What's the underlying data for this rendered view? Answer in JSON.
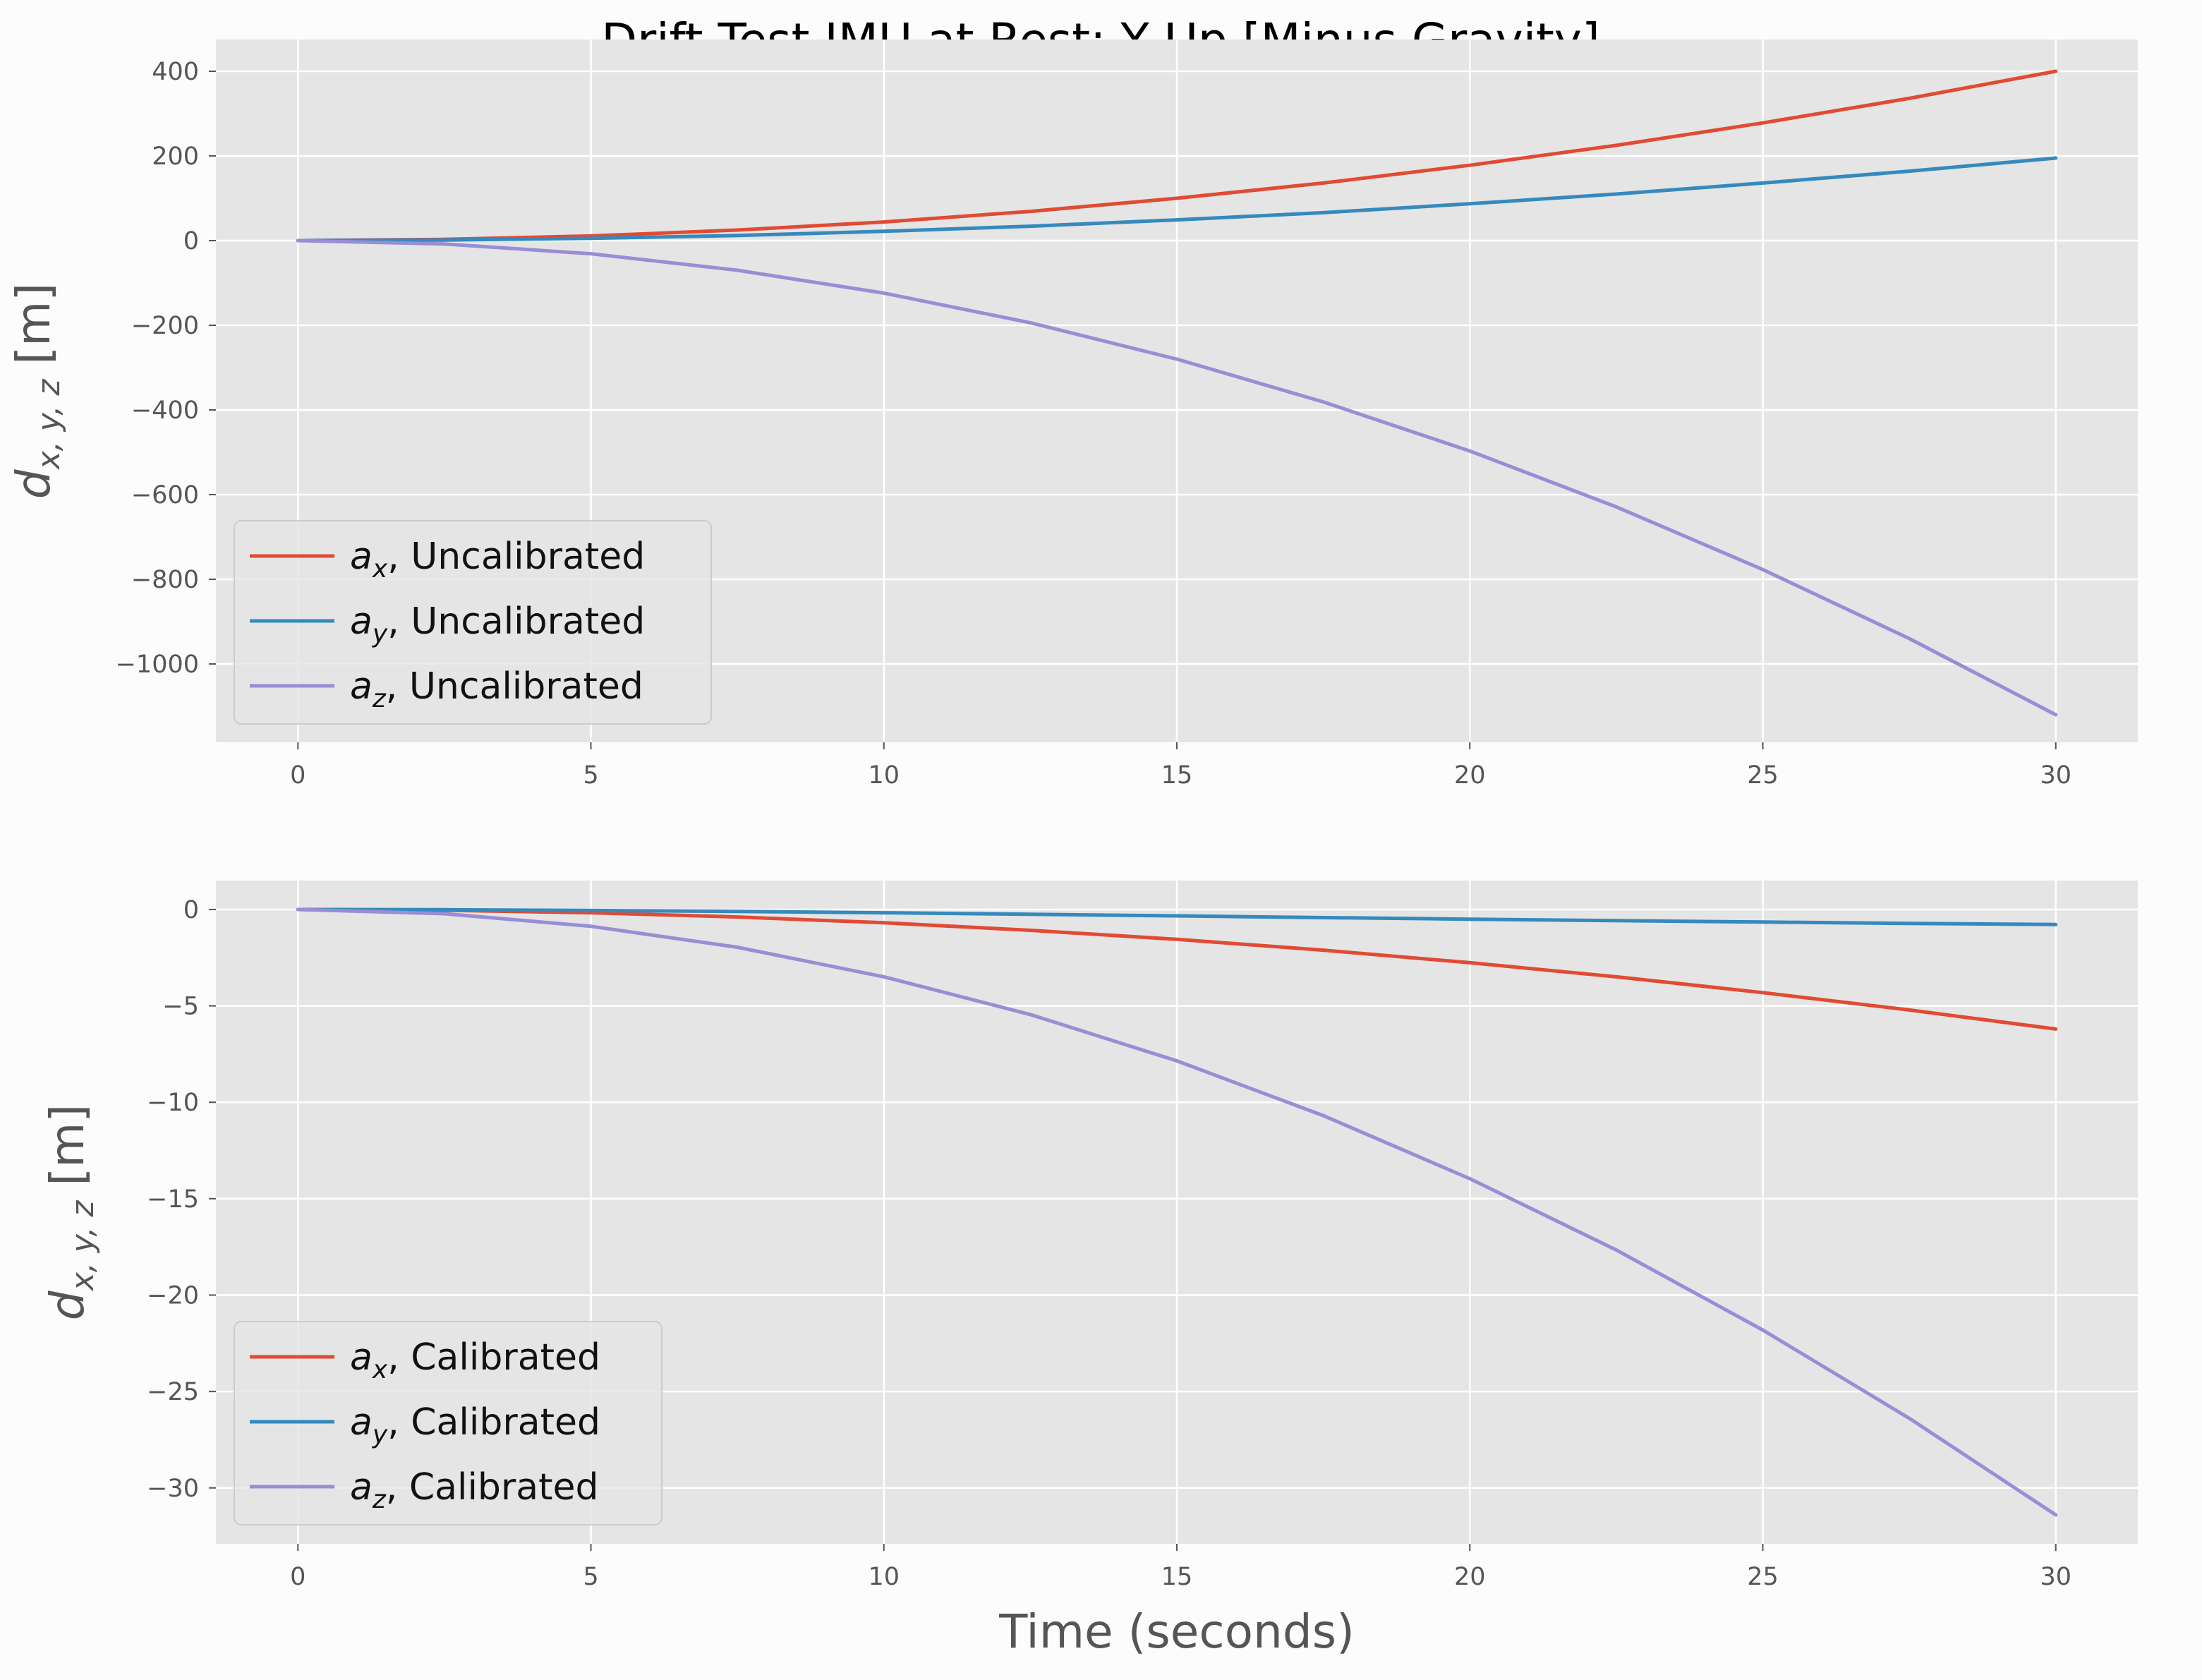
{
  "figure": {
    "title": "Drift Test IMU at Rest: Y Up [Minus Gravity]"
  },
  "colors": {
    "background": "#fcfcfc",
    "axes_face": "#e5e5e5",
    "grid": "#ffffff",
    "ax": "#e24a33",
    "ay": "#348abd",
    "az": "#988ed5"
  },
  "chart_data": [
    {
      "type": "line",
      "title": "Drift Test IMU at Rest: Y Up [Minus Gravity]",
      "xlabel": "",
      "ylabel": {
        "base": "d",
        "sub": "x, y, z",
        "unit": " [m]"
      },
      "xlim": [
        -1.4,
        31.4
      ],
      "ylim": [
        -1185,
        475
      ],
      "xticks": [
        0,
        5,
        10,
        15,
        20,
        25,
        30
      ],
      "yticks": [
        400,
        200,
        0,
        -200,
        -400,
        -600,
        -800,
        -1000
      ],
      "ytick_labels": [
        "400",
        "200",
        "0",
        "−200",
        "−400",
        "−600",
        "−800",
        "−1000"
      ],
      "grid": true,
      "legend_position": "lower-left",
      "series": [
        {
          "name": "a_x, Uncalibrated",
          "symbol": "a",
          "sub": "x",
          "suffix": ", Uncalibrated",
          "color": "#e24a33",
          "x": [
            0,
            2.5,
            5,
            7.5,
            10,
            12.5,
            15,
            17.5,
            20,
            22.5,
            25,
            27.5,
            30
          ],
          "y": [
            0,
            3,
            11,
            25,
            44,
            69,
            100,
            136,
            178,
            225,
            278,
            336,
            400
          ]
        },
        {
          "name": "a_y, Uncalibrated",
          "symbol": "a",
          "sub": "y",
          "suffix": ", Uncalibrated",
          "color": "#348abd",
          "x": [
            0,
            2.5,
            5,
            7.5,
            10,
            12.5,
            15,
            17.5,
            20,
            22.5,
            25,
            27.5,
            30
          ],
          "y": [
            0,
            1.4,
            5.4,
            12,
            22,
            34,
            49,
            66,
            87,
            110,
            136,
            164,
            195
          ]
        },
        {
          "name": "a_z, Uncalibrated",
          "symbol": "a",
          "sub": "z",
          "suffix": ", Uncalibrated",
          "color": "#988ed5",
          "x": [
            0,
            2.5,
            5,
            7.5,
            10,
            12.5,
            15,
            17.5,
            20,
            22.5,
            25,
            27.5,
            30
          ],
          "y": [
            0,
            -8,
            -31,
            -70,
            -124,
            -194,
            -280,
            -381,
            -497,
            -629,
            -777,
            -940,
            -1120
          ]
        }
      ]
    },
    {
      "type": "line",
      "title": "",
      "xlabel": "Time (seconds)",
      "ylabel": {
        "base": "d",
        "sub": "x, y, z",
        "unit": " [m]"
      },
      "xlim": [
        -1.4,
        31.4
      ],
      "ylim": [
        -32.9,
        1.5
      ],
      "xticks": [
        0,
        5,
        10,
        15,
        20,
        25,
        30
      ],
      "yticks": [
        0,
        -5,
        -10,
        -15,
        -20,
        -25,
        -30
      ],
      "ytick_labels": [
        "0",
        "−5",
        "−10",
        "−15",
        "−20",
        "−25",
        "−30"
      ],
      "grid": true,
      "legend_position": "lower-left",
      "series": [
        {
          "name": "a_x, Calibrated",
          "symbol": "a",
          "sub": "x",
          "suffix": ", Calibrated",
          "color": "#e24a33",
          "x": [
            0,
            2.5,
            5,
            7.5,
            10,
            12.5,
            15,
            17.5,
            20,
            22.5,
            25,
            27.5,
            30
          ],
          "y": [
            0,
            -0.04,
            -0.17,
            -0.39,
            -0.69,
            -1.08,
            -1.55,
            -2.11,
            -2.76,
            -3.49,
            -4.31,
            -5.21,
            -6.2
          ]
        },
        {
          "name": "a_y, Calibrated",
          "symbol": "a",
          "sub": "y",
          "suffix": ", Calibrated",
          "color": "#348abd",
          "x": [
            0,
            2.5,
            5,
            7.5,
            10,
            12.5,
            15,
            17.5,
            20,
            22.5,
            25,
            27.5,
            30
          ],
          "y": [
            0,
            -0.01,
            -0.05,
            -0.1,
            -0.17,
            -0.25,
            -0.33,
            -0.42,
            -0.5,
            -0.58,
            -0.65,
            -0.72,
            -0.78
          ]
        },
        {
          "name": "a_z, Calibrated",
          "symbol": "a",
          "sub": "z",
          "suffix": ", Calibrated",
          "color": "#988ed5",
          "x": [
            0,
            2.5,
            5,
            7.5,
            10,
            12.5,
            15,
            17.5,
            20,
            22.5,
            25,
            27.5,
            30
          ],
          "y": [
            0,
            -0.22,
            -0.87,
            -1.96,
            -3.49,
            -5.45,
            -7.85,
            -10.69,
            -13.96,
            -17.66,
            -21.81,
            -26.39,
            -31.4
          ]
        }
      ]
    }
  ]
}
